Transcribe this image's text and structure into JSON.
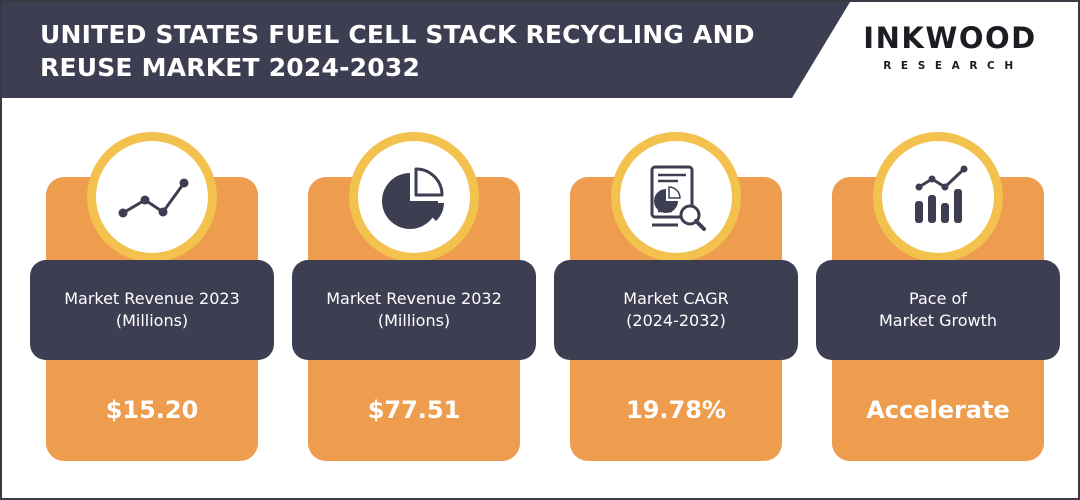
{
  "header": {
    "title_line1": "UNITED STATES FUEL CELL STACK RECYCLING AND",
    "title_line2": "REUSE MARKET 2024-2032",
    "logo_main": "INKWOOD",
    "logo_sub": "RESEARCH"
  },
  "colors": {
    "header_bg": "#3e3e52",
    "card_orange": "#ee9c4d",
    "ring_yellow": "#f2c14e",
    "label_bg": "#3e3e52",
    "icon": "#3e3e52"
  },
  "cards": [
    {
      "icon": "line-chart-icon",
      "label_line1": "Market Revenue 2023",
      "label_line2": "(Millions)",
      "value": "$15.20"
    },
    {
      "icon": "pie-chart-icon",
      "label_line1": "Market Revenue 2032",
      "label_line2": "(Millions)",
      "value": "$77.51"
    },
    {
      "icon": "report-analysis-icon",
      "label_line1": "Market CAGR",
      "label_line2": "(2024-2032)",
      "value": "19.78%"
    },
    {
      "icon": "growth-bars-icon",
      "label_line1": "Pace of",
      "label_line2": "Market Growth",
      "value": "Accelerate"
    }
  ]
}
